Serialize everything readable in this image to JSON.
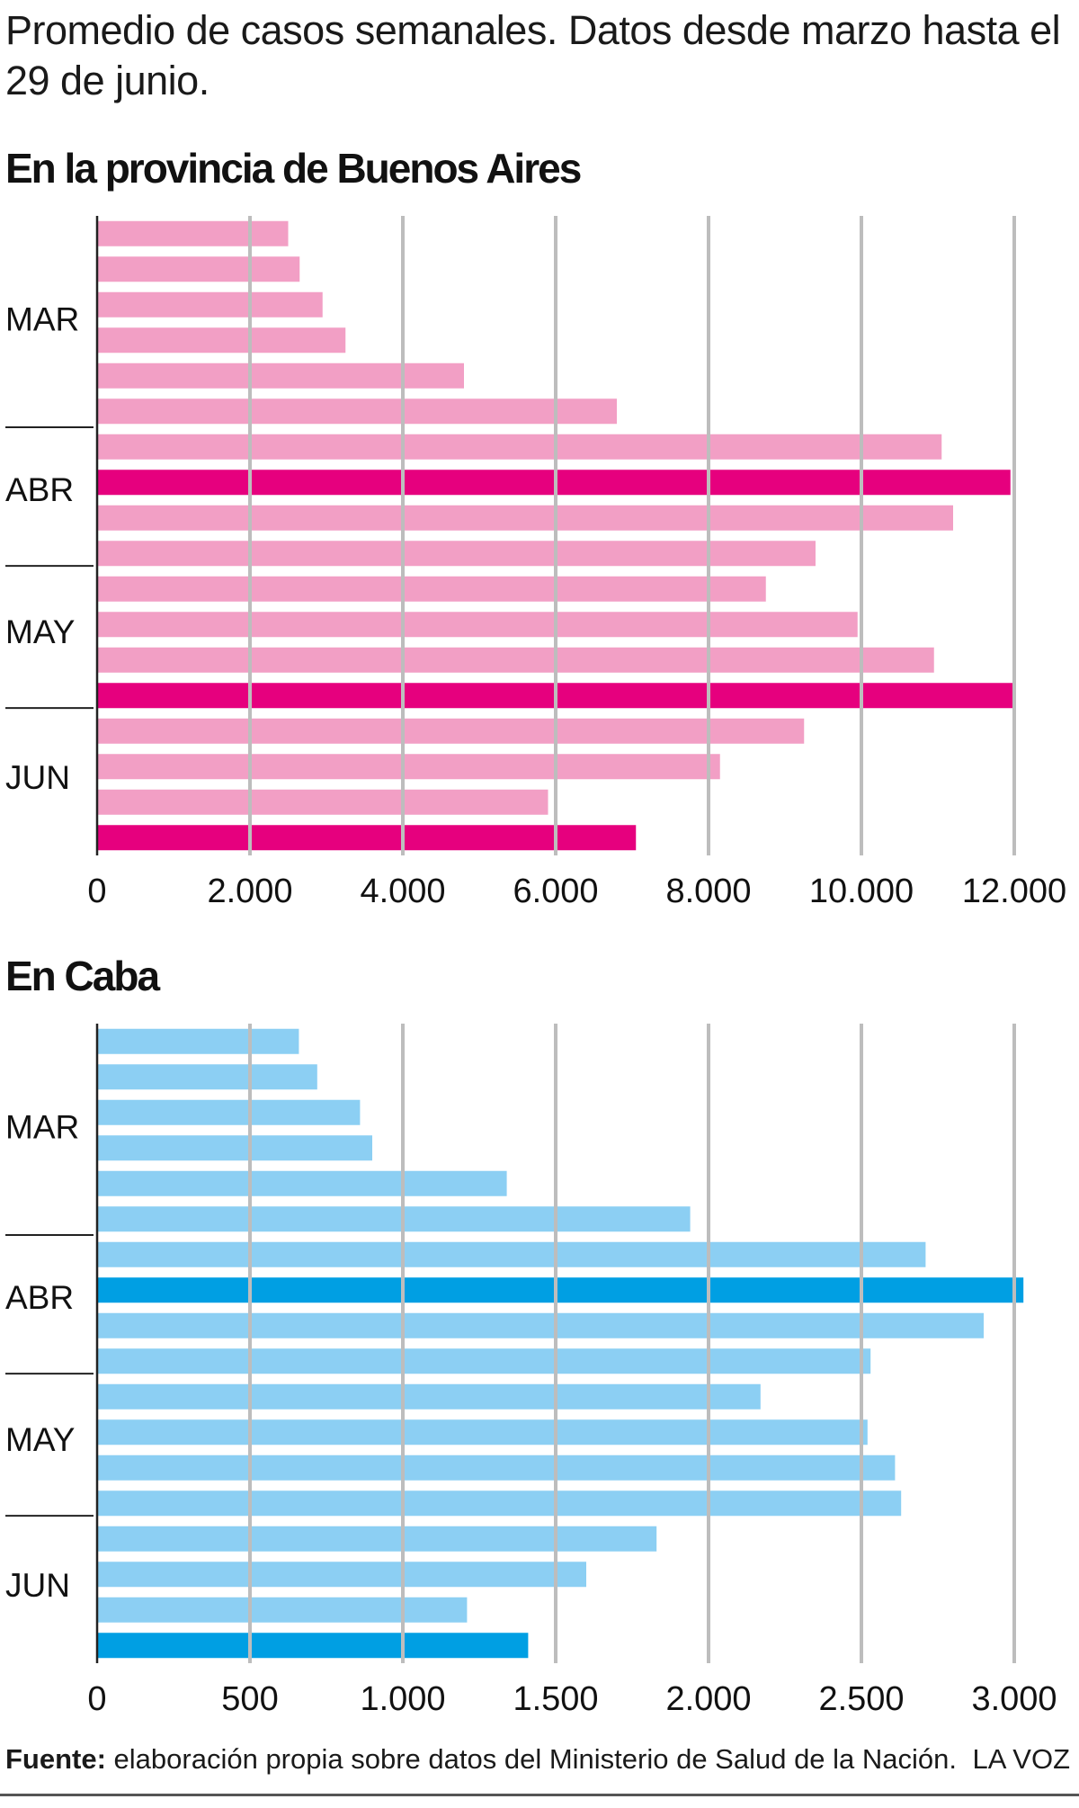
{
  "headline": "Promedio de casos semanales. Datos desde marzo hasta el 29 de junio.",
  "colors": {
    "pba_normal": "#f29fc5",
    "pba_highlight": "#e6007e",
    "caba_normal": "#8ccff3",
    "caba_highlight": "#009fe3",
    "grid": "#bdbdbd",
    "axis": "#222222"
  },
  "chart_data": [
    {
      "type": "bar",
      "orientation": "horizontal",
      "title": "En la provincia de Buenos Aires",
      "xlim": [
        0,
        12000
      ],
      "x_ticks": [
        "0",
        "2.000",
        "4.000",
        "6.000",
        "8.000",
        "10.000",
        "12.000"
      ],
      "month_labels": [
        "MAR",
        "ABR",
        "MAY",
        "JUN"
      ],
      "values": [
        2500,
        2650,
        2950,
        3250,
        4800,
        6800,
        11050,
        11950,
        11200,
        9400,
        8750,
        9950,
        10950,
        12000,
        9250,
        8150,
        5900,
        7050
      ],
      "highlight": [
        false,
        false,
        false,
        false,
        false,
        false,
        false,
        true,
        false,
        false,
        false,
        false,
        false,
        true,
        false,
        false,
        false,
        true
      ],
      "grid": true
    },
    {
      "type": "bar",
      "orientation": "horizontal",
      "title": "En Caba",
      "xlim": [
        0,
        3000
      ],
      "x_ticks": [
        "0",
        "500",
        "1.000",
        "1.500",
        "2.000",
        "2.500",
        "3.000"
      ],
      "month_labels": [
        "MAR",
        "ABR",
        "MAY",
        "JUN"
      ],
      "values": [
        660,
        720,
        860,
        900,
        1340,
        1940,
        2710,
        3030,
        2900,
        2530,
        2170,
        2520,
        2610,
        2630,
        1830,
        1600,
        1210,
        1410
      ],
      "highlight": [
        false,
        false,
        false,
        false,
        false,
        false,
        false,
        true,
        false,
        false,
        false,
        false,
        false,
        false,
        false,
        false,
        false,
        true
      ],
      "grid": true
    }
  ],
  "footer": {
    "source_label": "Fuente:",
    "source_text": " elaboración propia sobre datos del Ministerio de Salud de la Nación.",
    "brand": "LA VOZ"
  }
}
